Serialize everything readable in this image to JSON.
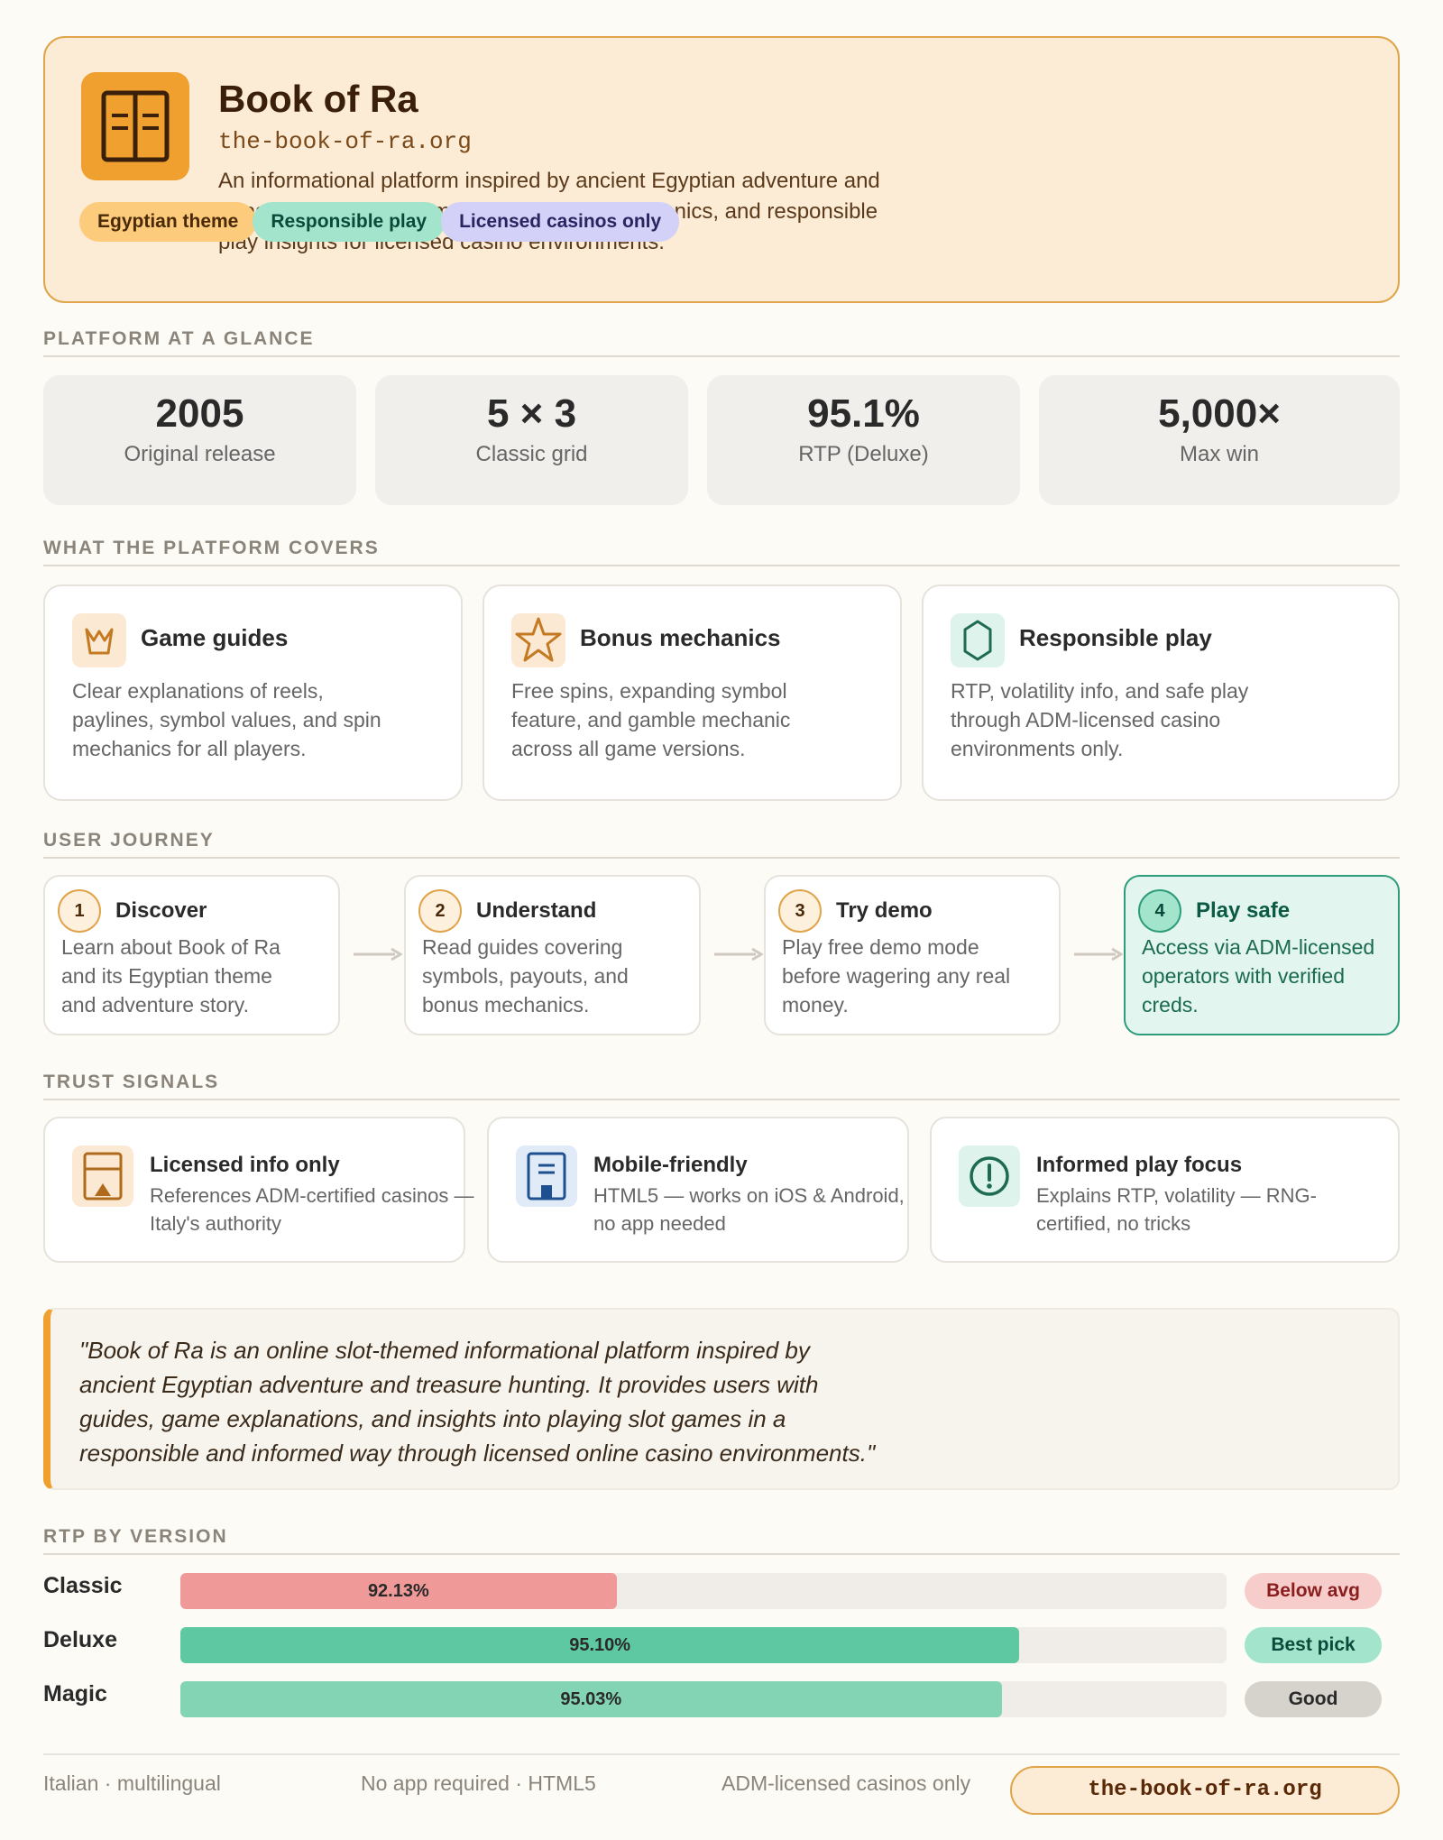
{
  "header": {
    "title": "Book of Ra",
    "domain": "the-book-of-ra.org",
    "description": "An informational platform inspired by ancient Egyptian adventure and treasure hunting — game guides, bonus mechanics, and responsible play insights for licensed casino environments.",
    "tags": [
      "Egyptian theme",
      "Responsible play",
      "Licensed casinos only"
    ],
    "icon": "book-icon"
  },
  "glance": {
    "title": "PLATFORM AT A GLANCE",
    "stats": [
      {
        "value": "2005",
        "label": "Original release"
      },
      {
        "value": "5 × 3",
        "label": "Classic grid"
      },
      {
        "value": "95.1%",
        "label": "RTP (Deluxe)"
      },
      {
        "value": "5,000×",
        "label": "Max win"
      }
    ]
  },
  "covers": {
    "title": "WHAT THE PLATFORM COVERS",
    "items": [
      {
        "title": "Game guides",
        "desc": "Clear explanations of reels, paylines, symbol values, and spin mechanics for all players.",
        "icon": "crown-icon"
      },
      {
        "title": "Bonus mechanics",
        "desc": "Free spins, expanding symbol feature, and gamble mechanic across all game versions.",
        "icon": "star-icon"
      },
      {
        "title": "Responsible play",
        "desc": "RTP, volatility info, and safe play through ADM-licensed casino environments only.",
        "icon": "shield-icon"
      }
    ]
  },
  "journey": {
    "title": "USER JOURNEY",
    "steps": [
      {
        "num": "1",
        "title": "Discover",
        "desc": "Learn about Book of Ra and its Egyptian theme and adventure story."
      },
      {
        "num": "2",
        "title": "Understand",
        "desc": "Read guides covering symbols, payouts, and bonus mechanics."
      },
      {
        "num": "3",
        "title": "Try demo",
        "desc": "Play free demo mode before wagering any real money."
      },
      {
        "num": "4",
        "title": "Play safe",
        "desc": "Access via ADM-licensed operators with verified creds."
      }
    ]
  },
  "trust": {
    "title": "TRUST SIGNALS",
    "items": [
      {
        "title": "Licensed info only",
        "desc": "References ADM-certified casinos — Italy's authority",
        "icon": "license-icon"
      },
      {
        "title": "Mobile-friendly",
        "desc": "HTML5 — works on iOS & Android, no app needed",
        "icon": "mobile-icon"
      },
      {
        "title": "Informed play focus",
        "desc": "Explains RTP, volatility — RNG-certified, no tricks",
        "icon": "info-icon"
      }
    ]
  },
  "quote": {
    "text": "\"Book of Ra is an online slot-themed informational platform inspired by ancient Egyptian adventure and treasure hunting. It provides users with guides, game explanations, and insights into playing slot games in a responsible and informed way through licensed online casino environments.\""
  },
  "rtp": {
    "title": "RTP BY VERSION",
    "rows": [
      {
        "name": "Classic",
        "value": 92.13,
        "label": "92.13%",
        "fill_fraction": 0.417,
        "badge": "Below avg",
        "color": "#ef9a98",
        "badge_bg": "#f7cdcb",
        "badge_fg": "#8a1e1e"
      },
      {
        "name": "Deluxe",
        "value": 95.1,
        "label": "95.10%",
        "fill_fraction": 0.802,
        "badge": "Best pick",
        "color": "#5dc8a2",
        "badge_bg": "#a2e5cc",
        "badge_fg": "#0b4a3a"
      },
      {
        "name": "Magic",
        "value": 95.03,
        "label": "95.03%",
        "fill_fraction": 0.785,
        "badge": "Good",
        "color": "#82d4b4",
        "badge_bg": "#d6d2cc",
        "badge_fg": "#2a2a2a"
      }
    ]
  },
  "footer": {
    "items": [
      "Italian · multilingual",
      "No app required · HTML5",
      "ADM-licensed casinos only"
    ],
    "badge": "the-book-of-ra.org"
  },
  "colors": {
    "accent": "#efa02e",
    "green": "#2e9c7a",
    "background": "#fdfbf6"
  }
}
